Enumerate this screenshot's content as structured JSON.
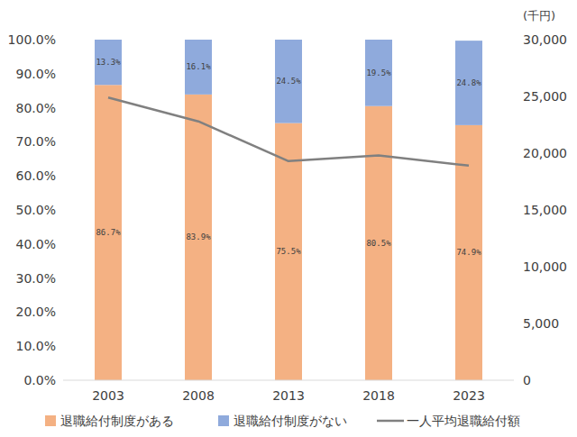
{
  "chart_data": {
    "type": "bar",
    "stacked": true,
    "data_labels": true,
    "grid": false,
    "legend": "bottom",
    "y2_label": "(千円)",
    "categories": [
      "2003",
      "2008",
      "2013",
      "2018",
      "2023"
    ],
    "ylim": [
      0,
      100
    ],
    "yticks": [
      {
        "value": 0,
        "label": "0.0%"
      },
      {
        "value": 10,
        "label": "10.0%"
      },
      {
        "value": 20,
        "label": "20.0%"
      },
      {
        "value": 30,
        "label": "30.0%"
      },
      {
        "value": 40,
        "label": "40.0%"
      },
      {
        "value": 50,
        "label": "50.0%"
      },
      {
        "value": 60,
        "label": "60.0%"
      },
      {
        "value": 70,
        "label": "70.0%"
      },
      {
        "value": 80,
        "label": "80.0%"
      },
      {
        "value": 90,
        "label": "90.0%"
      },
      {
        "value": 100,
        "label": "100.0%"
      }
    ],
    "y2lim": [
      0,
      30000
    ],
    "y2ticks": [
      0,
      {
        "value": 5000,
        "label": "5,000"
      },
      {
        "value": 10000,
        "label": "10,000"
      },
      {
        "value": 15000,
        "label": "15,000"
      },
      {
        "value": 20000,
        "label": "20,000"
      },
      {
        "value": 25000,
        "label": "25,000"
      },
      {
        "value": 30000,
        "label": "30,000"
      }
    ],
    "series": [
      {
        "name": "退職給付制度がある",
        "type": "bar",
        "color": "#f4b183",
        "values": [
          86.7,
          83.9,
          75.5,
          80.5,
          74.9
        ],
        "value_labels": [
          "86.7%",
          "83.9%",
          "75.5%",
          "80.5%",
          "74.9%"
        ]
      },
      {
        "name": "退職給付制度がない",
        "type": "bar",
        "color": "#8faadc",
        "values": [
          13.3,
          16.1,
          24.5,
          19.5,
          24.8
        ],
        "value_labels": [
          "13.3%",
          "16.1%",
          "24.5%",
          "19.5%",
          "24.8%"
        ]
      },
      {
        "name": "一人平均退職給付額",
        "type": "line",
        "axis": "y2",
        "color": "#808080",
        "values": [
          24900,
          22800,
          19300,
          19800,
          18900
        ]
      }
    ]
  }
}
